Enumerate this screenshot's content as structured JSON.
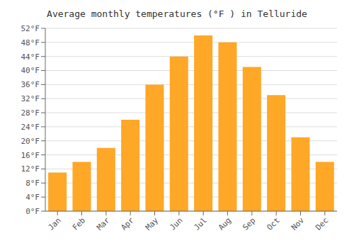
{
  "chart_data": {
    "type": "bar",
    "title": "Average monthly temperatures (°F ) in Telluride",
    "categories": [
      "Jan",
      "Feb",
      "Mar",
      "Apr",
      "May",
      "Jun",
      "Jul",
      "Aug",
      "Sep",
      "Oct",
      "Nov",
      "Dec"
    ],
    "values": [
      11,
      14,
      18,
      26,
      36,
      44,
      50,
      48,
      41,
      33,
      21,
      14
    ],
    "color": "#FFA726",
    "ylim": [
      0,
      52
    ],
    "yticks": [
      {
        "value": 0,
        "label": "0°F"
      },
      {
        "value": 4,
        "label": "4°F"
      },
      {
        "value": 8,
        "label": "8°F"
      },
      {
        "value": 12,
        "label": "12°F"
      },
      {
        "value": 16,
        "label": "16°F"
      },
      {
        "value": 20,
        "label": "20°F"
      },
      {
        "value": 24,
        "label": "24°F"
      },
      {
        "value": 28,
        "label": "28°F"
      },
      {
        "value": 32,
        "label": "32°F"
      },
      {
        "value": 36,
        "label": "36°F"
      },
      {
        "value": 40,
        "label": "40°F"
      },
      {
        "value": 44,
        "label": "44°F"
      },
      {
        "value": 48,
        "label": "48°F"
      },
      {
        "value": 52,
        "label": "52°F"
      }
    ],
    "grid": true
  }
}
